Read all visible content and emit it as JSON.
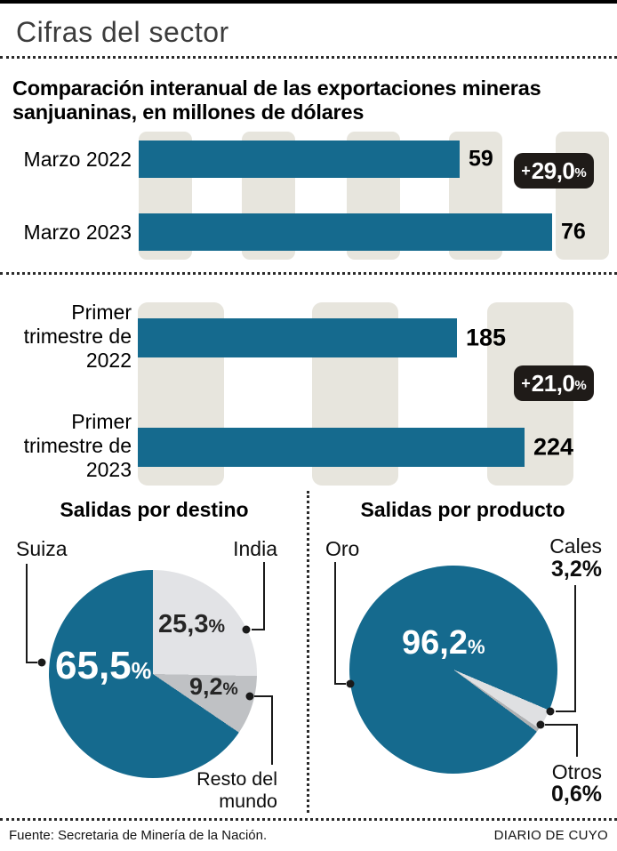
{
  "page": {
    "title": "Cifras del sector",
    "subtitle": "Comparación interanual de las exportaciones mineras sanjuaninas, en millones de dólares"
  },
  "colors": {
    "accent_blue": "#156a8e",
    "stripe_beige": "#e7e5dd",
    "badge_black": "#1f1b18",
    "pie_light_gray": "#e2e3e6",
    "pie_mid_gray": "#bfc1c4",
    "pie_sliver_gray": "#b0b2b4"
  },
  "chart_data": [
    {
      "type": "bar",
      "orientation": "horizontal",
      "title": "Comparación interanual de las exportaciones mineras sanjuaninas, en millones de dólares",
      "categories": [
        "Marzo 2022",
        "Marzo 2023"
      ],
      "values": [
        59,
        76
      ],
      "unit": "millones de dólares",
      "change_label": "+29,0%",
      "bar_color": "#156a8e",
      "grid": "decorative vertical stripes"
    },
    {
      "type": "bar",
      "orientation": "horizontal",
      "categories": [
        "Primer trimestre de 2022",
        "Primer trimestre de 2023"
      ],
      "values": [
        185,
        224
      ],
      "unit": "millones de dólares",
      "change_label": "+21,0%",
      "bar_color": "#156a8e",
      "grid": "decorative vertical stripes"
    },
    {
      "type": "pie",
      "title": "Salidas por destino",
      "start_angle_deg": 0,
      "slices": [
        {
          "label": "India",
          "value": 25.3,
          "color": "#e2e3e6"
        },
        {
          "label": "Resto del mundo",
          "value": 9.2,
          "color": "#bfc1c4"
        },
        {
          "label": "Suiza",
          "value": 65.5,
          "color": "#156a8e"
        }
      ]
    },
    {
      "type": "pie",
      "title": "Salidas por producto",
      "start_angle_deg": 113,
      "slices": [
        {
          "label": "Cales",
          "value": 3.2,
          "color": "#dfe0e2"
        },
        {
          "label": "Otros",
          "value": 0.6,
          "color": "#b0b2b4"
        },
        {
          "label": "Oro",
          "value": 96.2,
          "color": "#156a8e"
        }
      ]
    }
  ],
  "bars_month": {
    "rows": [
      {
        "label": "Marzo 2022",
        "value": "59"
      },
      {
        "label": "Marzo 2023",
        "value": "76"
      }
    ],
    "badge": {
      "plus": "+",
      "value": "29,0",
      "pct": "%"
    }
  },
  "bars_quarter": {
    "rows": [
      {
        "label": "Primer trimestre de 2022",
        "value": "185"
      },
      {
        "label": "Primer trimestre de 2023",
        "value": "224"
      }
    ],
    "badge": {
      "plus": "+",
      "value": "21,0",
      "pct": "%"
    }
  },
  "pie_destino": {
    "title": "Salidas por destino",
    "big_value": "65,5",
    "big_pct": "%",
    "labels": {
      "suiza": "Suiza",
      "india": "India",
      "resto": "Resto del mundo"
    },
    "india_value": "25,3",
    "india_pct": "%",
    "resto_value": "9,2",
    "resto_pct": "%"
  },
  "pie_producto": {
    "title": "Salidas por producto",
    "big_value": "96,2",
    "big_pct": "%",
    "labels": {
      "oro": "Oro",
      "cales": "Cales",
      "otros": "Otros"
    },
    "cales_value": "3,2",
    "cales_pct": "%",
    "otros_value": "0,6",
    "otros_pct": "%"
  },
  "footer": {
    "source": "Fuente: Secretaria de Minería de la Nación.",
    "credit": "DIARIO DE CUYO"
  }
}
